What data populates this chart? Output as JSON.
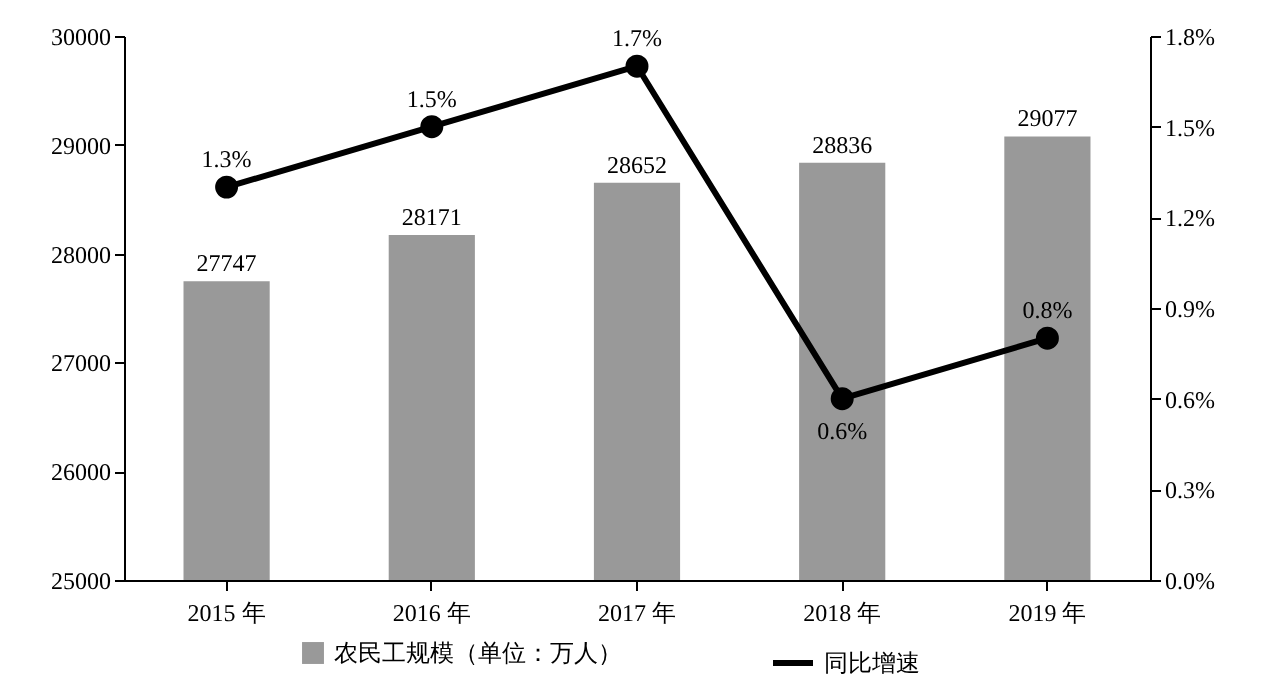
{
  "chart_data": {
    "type": "bar",
    "categories": [
      "2015 年",
      "2016 年",
      "2017 年",
      "2018 年",
      "2019 年"
    ],
    "series": [
      {
        "name": "农民工规模（单位：万人）",
        "color": "#999999",
        "values": [
          27747,
          28171,
          28652,
          28836,
          29077
        ],
        "value_labels": [
          "27747",
          "28171",
          "28652",
          "28836",
          "29077"
        ]
      },
      {
        "name": "同比增速",
        "type": "line",
        "axis": "y2",
        "color": "#000000",
        "values": [
          1.3,
          1.5,
          1.7,
          0.6,
          0.8
        ],
        "value_labels": [
          "1.3%",
          "1.5%",
          "1.7%",
          "0.6%",
          "0.8%"
        ]
      }
    ],
    "ylim": [
      25000,
      30000
    ],
    "yticks": [
      25000,
      26000,
      27000,
      28000,
      29000,
      30000
    ],
    "y2lim": [
      0,
      1.8
    ],
    "y2ticks": [
      {
        "value": 0,
        "label": "0.0%"
      },
      {
        "value": 0.3,
        "label": "0.3%"
      },
      {
        "value": 0.6,
        "label": "0.6%"
      },
      {
        "value": 0.9,
        "label": "0.9%"
      },
      {
        "value": 1.2,
        "label": "1.2%"
      },
      {
        "value": 1.5,
        "label": "1.5%"
      },
      {
        "value": 1.8,
        "label": "1.8%"
      }
    ],
    "legend": "bottom",
    "marker": "circle",
    "line_style": "solid",
    "grid": false
  }
}
